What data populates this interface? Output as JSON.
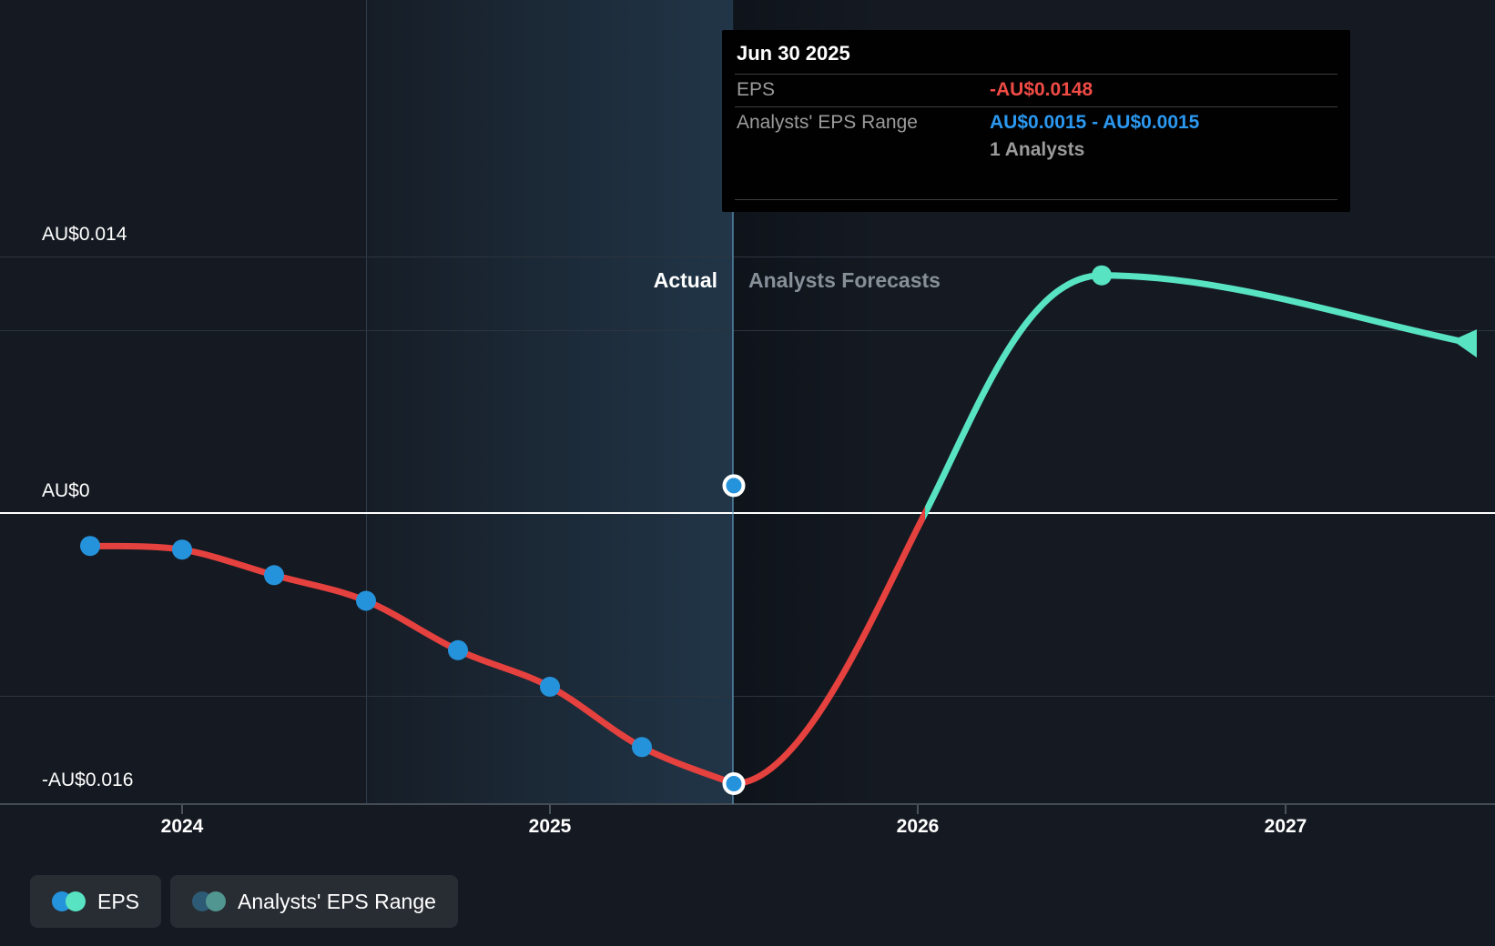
{
  "page": {
    "background": "#151a22"
  },
  "tooltip": {
    "date": "Jun 30 2025",
    "eps_label": "EPS",
    "eps_value": "-AU$0.0148",
    "eps_color": "#f04b45",
    "range_label": "Analysts' EPS Range",
    "range_value": "AU$0.0015 - AU$0.0015",
    "range_color": "#2b98f0",
    "analysts_count": "1 Analysts"
  },
  "annotations": {
    "actual": "Actual",
    "forecasts": "Analysts Forecasts"
  },
  "legend": [
    {
      "label": "EPS",
      "colors": [
        "#2593dc",
        "#58e3c2"
      ]
    },
    {
      "label": "Analysts' EPS Range",
      "colors": [
        "#2d5a74",
        "#519690"
      ]
    }
  ],
  "chart_data": {
    "type": "line",
    "title": "EPS: past results and analysts' forecasts",
    "currency": "AU$",
    "xlim": [
      2023.5,
      2027.56
    ],
    "ylim": [
      -0.016,
      0.0155
    ],
    "grid": "horizontal",
    "y_ticks": [
      {
        "label": "AU$0.014",
        "value": 0.014
      },
      {
        "label": "AU$0",
        "value": 0
      },
      {
        "label": "-AU$0.016",
        "value": -0.016
      }
    ],
    "unlabeled_gridlines": [
      0.01,
      -0.01
    ],
    "x_ticks": [
      {
        "label": "2024",
        "value": 2024
      },
      {
        "label": "2025",
        "value": 2025
      },
      {
        "label": "2026",
        "value": 2026
      },
      {
        "label": "2027",
        "value": 2027
      }
    ],
    "divider_date": 2025.5,
    "highlight_band": [
      2024.5,
      2025.5
    ],
    "series": [
      {
        "name": "EPS (actual)",
        "color": "#e5413e",
        "marker_color": "#2593dc",
        "points": [
          {
            "date": "Sep 30 2023",
            "t": 2023.75,
            "value": -0.0018
          },
          {
            "date": "Dec 31 2023",
            "t": 2024.0,
            "value": -0.002
          },
          {
            "date": "Mar 31 2024",
            "t": 2024.25,
            "value": -0.0034
          },
          {
            "date": "Jun 30 2024",
            "t": 2024.5,
            "value": -0.0048
          },
          {
            "date": "Sep 30 2024",
            "t": 2024.75,
            "value": -0.0075
          },
          {
            "date": "Dec 31 2024",
            "t": 2025.0,
            "value": -0.0095
          },
          {
            "date": "Mar 31 2025",
            "t": 2025.25,
            "value": -0.0128
          },
          {
            "date": "Jun 30 2025",
            "t": 2025.5,
            "value": -0.0148
          }
        ]
      },
      {
        "name": "EPS (analysts forecast)",
        "color": "#58e3c2",
        "points": [
          {
            "date": "Jun 30 2026",
            "t": 2026.5,
            "value": 0.013
          },
          {
            "date": "Jun 30 2027",
            "t": 2027.5,
            "value": 0.0093
          }
        ]
      },
      {
        "name": "Analysts' EPS Range",
        "points": [
          {
            "date": "Jun 30 2025",
            "t": 2025.5,
            "low": 0.0015,
            "high": 0.0015
          }
        ]
      }
    ]
  }
}
